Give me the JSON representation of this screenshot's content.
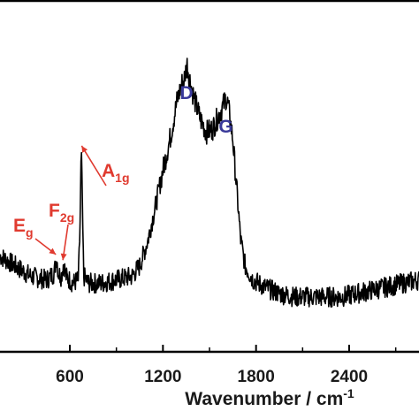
{
  "chart_data": {
    "type": "line",
    "title": "",
    "xlabel": "Wavenumber / cm",
    "xlabel_superscript": "-1",
    "ylabel": "",
    "xlim": [
      150,
      2850
    ],
    "ylim": [
      0,
      1
    ],
    "x_ticks": [
      600,
      1200,
      1800,
      2400
    ],
    "x_tick_labels": [
      "600",
      "1200",
      "1800",
      "2400"
    ],
    "grid": false,
    "series_color": "#000000",
    "colors": {
      "band_label": "#e03a2f",
      "carbon_label": "#3a3a9a"
    },
    "points": [
      [
        150,
        0.28
      ],
      [
        250,
        0.25
      ],
      [
        350,
        0.22
      ],
      [
        450,
        0.21
      ],
      [
        500,
        0.23
      ],
      [
        515,
        0.28
      ],
      [
        525,
        0.23
      ],
      [
        545,
        0.22
      ],
      [
        560,
        0.26
      ],
      [
        575,
        0.22
      ],
      [
        620,
        0.2
      ],
      [
        655,
        0.21
      ],
      [
        665,
        0.35
      ],
      [
        672,
        0.55
      ],
      [
        676,
        0.58
      ],
      [
        682,
        0.4
      ],
      [
        690,
        0.22
      ],
      [
        720,
        0.2
      ],
      [
        800,
        0.2
      ],
      [
        900,
        0.21
      ],
      [
        1000,
        0.22
      ],
      [
        1050,
        0.25
      ],
      [
        1100,
        0.32
      ],
      [
        1150,
        0.42
      ],
      [
        1200,
        0.53
      ],
      [
        1250,
        0.63
      ],
      [
        1290,
        0.73
      ],
      [
        1320,
        0.78
      ],
      [
        1340,
        0.8
      ],
      [
        1355,
        0.84
      ],
      [
        1370,
        0.8
      ],
      [
        1400,
        0.74
      ],
      [
        1440,
        0.68
      ],
      [
        1480,
        0.64
      ],
      [
        1520,
        0.65
      ],
      [
        1560,
        0.69
      ],
      [
        1590,
        0.72
      ],
      [
        1605,
        0.74
      ],
      [
        1620,
        0.72
      ],
      [
        1650,
        0.62
      ],
      [
        1680,
        0.45
      ],
      [
        1700,
        0.33
      ],
      [
        1730,
        0.25
      ],
      [
        1780,
        0.21
      ],
      [
        1850,
        0.19
      ],
      [
        1950,
        0.17
      ],
      [
        2050,
        0.16
      ],
      [
        2150,
        0.16
      ],
      [
        2250,
        0.16
      ],
      [
        2350,
        0.16
      ],
      [
        2450,
        0.17
      ],
      [
        2550,
        0.18
      ],
      [
        2650,
        0.19
      ],
      [
        2750,
        0.2
      ],
      [
        2850,
        0.21
      ]
    ],
    "annotations": [
      {
        "label": "E",
        "subscript": "g",
        "x": 510,
        "color": "band_label",
        "arrow": true
      },
      {
        "label": "F",
        "subscript": "2g",
        "x": 555,
        "color": "band_label",
        "arrow": true
      },
      {
        "label": "A",
        "subscript": "1g",
        "x": 676,
        "color": "band_label",
        "arrow": true
      },
      {
        "label": "D",
        "subscript": "",
        "x": 1355,
        "color": "carbon_label",
        "arrow": false
      },
      {
        "label": "G",
        "subscript": "",
        "x": 1605,
        "color": "carbon_label",
        "arrow": false
      }
    ]
  }
}
